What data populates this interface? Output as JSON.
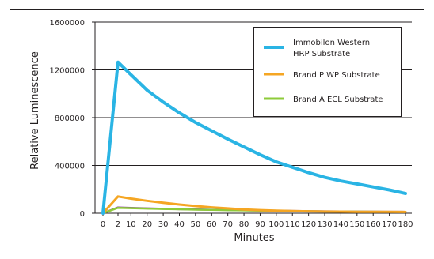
{
  "chart_data": {
    "type": "line",
    "title": "",
    "xlabel": "Minutes",
    "ylabel": "Relative Luminescence",
    "x": [
      0,
      2,
      10,
      20,
      30,
      40,
      50,
      60,
      70,
      80,
      90,
      100,
      110,
      120,
      130,
      140,
      150,
      160,
      170,
      180
    ],
    "x_ticks": [
      0,
      2,
      10,
      20,
      30,
      40,
      50,
      60,
      70,
      80,
      90,
      100,
      110,
      120,
      130,
      140,
      150,
      160,
      170,
      180
    ],
    "y_ticks": [
      0,
      400000,
      800000,
      1200000,
      1600000
    ],
    "y_tick_labels": [
      "0",
      "400000",
      "800000",
      "1200000",
      "1600000"
    ],
    "ylim": [
      0,
      1600000
    ],
    "grid": "horizontal",
    "legend_position": "top-right",
    "series": [
      {
        "name": "Immobilon Western HRP Substrate",
        "name_lines": [
          "Immobilon Western",
          "HRP Substrate"
        ],
        "color": "#2ab4e4",
        "values": [
          0,
          1265000,
          1160000,
          1030000,
          930000,
          840000,
          760000,
          690000,
          620000,
          555000,
          490000,
          430000,
          385000,
          340000,
          300000,
          270000,
          245000,
          220000,
          195000,
          165000
        ]
      },
      {
        "name": "Brand P WP Substrate",
        "name_lines": [
          "Brand P WP Substrate"
        ],
        "color": "#f5a623",
        "values": [
          0,
          140000,
          122000,
          104000,
          88000,
          73000,
          60000,
          49000,
          40000,
          32000,
          26000,
          21000,
          18000,
          16000,
          14000,
          13000,
          12000,
          11500,
          11000,
          10500
        ]
      },
      {
        "name": "Brand A ECL Substrate",
        "name_lines": [
          "Brand A ECL Substrate"
        ],
        "color": "#8ecb3a",
        "values": [
          0,
          45000,
          42000,
          39000,
          36000,
          33000,
          30000,
          28000,
          26000,
          24000,
          22000,
          20000,
          18000,
          16500,
          15000,
          14000,
          13000,
          12500,
          12000,
          11500
        ]
      },
      {
        "name": "",
        "color": "#8a3e9c",
        "values": [
          0,
          48000,
          44000,
          40000,
          37000,
          34000,
          31000,
          29000,
          27000,
          25000,
          23000,
          21000,
          19000,
          17500,
          16000,
          15000,
          14000,
          13000,
          12500,
          12000
        ]
      }
    ]
  }
}
